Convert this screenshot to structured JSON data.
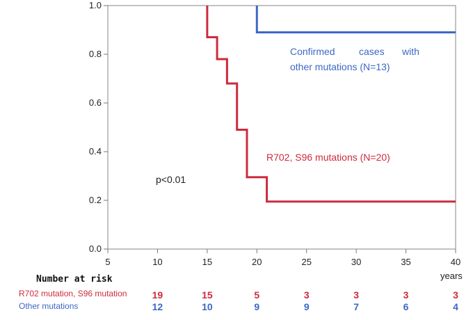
{
  "chart_data": {
    "type": "line",
    "subtype": "kaplan-meier step curve",
    "x_ticks": [
      5,
      10,
      15,
      20,
      25,
      30,
      35,
      40
    ],
    "y_ticks": [
      "0.0",
      "0.2",
      "0.4",
      "0.6",
      "0.8",
      "1.0"
    ],
    "xlim": [
      5,
      40
    ],
    "ylim": [
      0,
      1
    ],
    "x_unit": "years",
    "grid": false,
    "series": [
      {
        "color": "#cc2b3c",
        "label": "R702, S96 mutations (N=20)",
        "points": [
          [
            15,
            1.0
          ],
          [
            15,
            0.87
          ],
          [
            16,
            0.87
          ],
          [
            16,
            0.78
          ],
          [
            17,
            0.78
          ],
          [
            17,
            0.68
          ],
          [
            18,
            0.68
          ],
          [
            18,
            0.49
          ],
          [
            19,
            0.49
          ],
          [
            19,
            0.295
          ],
          [
            21,
            0.295
          ],
          [
            21,
            0.195
          ],
          [
            40,
            0.195
          ]
        ]
      },
      {
        "color": "#3d68c4",
        "label_line1": [
          "Confirmed",
          "cases",
          "with"
        ],
        "label_line2": "other mutations (N=13)",
        "points": [
          [
            20,
            1.0
          ],
          [
            20,
            0.89
          ],
          [
            40,
            0.89
          ]
        ]
      }
    ],
    "annotation": "p<0.01",
    "risk_table": {
      "title": "Number at risk",
      "rows": [
        {
          "name": "R702 mutation, S96 mutation",
          "color": "#cc2b3c",
          "values": [
            "19",
            "15",
            "5",
            "3",
            "3",
            "3",
            "3"
          ]
        },
        {
          "name": "Other mutations",
          "color": "#3d68c4",
          "values": [
            "12",
            "10",
            "9",
            "9",
            "7",
            "6",
            "4"
          ]
        }
      ],
      "at_x": [
        10,
        15,
        20,
        25,
        30,
        35,
        40
      ]
    }
  }
}
